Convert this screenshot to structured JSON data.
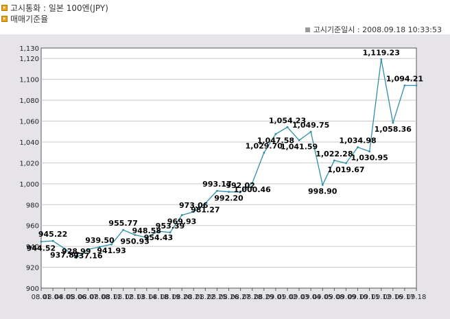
{
  "header": {
    "currency_label": "고시통화 : 일본 100엔(JPY)",
    "subtitle": "매매기준율",
    "notice_time": "고시기준일시 : 2008.09.18 10:33:53"
  },
  "colors": {
    "line": "#2a8fa6",
    "bullet": "#e8a317",
    "panel": "#e6e4e8"
  },
  "chart_data": {
    "type": "line",
    "title": "",
    "xlabel": "",
    "ylabel": "",
    "ylim": [
      900,
      1130
    ],
    "yticks": [
      900,
      920,
      940,
      960,
      980,
      1000,
      1020,
      1040,
      1060,
      1080,
      1100,
      1120,
      1130
    ],
    "ytick_labels": [
      "900",
      "920",
      "940",
      "960",
      "980",
      "1,000",
      "1,020",
      "1,040",
      "1,060",
      "1,080",
      "1,100",
      "1,120",
      "1,130"
    ],
    "grid": true,
    "x": [
      "08.01",
      "08.04",
      "08.05",
      "08.06",
      "08.07",
      "08.08",
      "08.11",
      "08.12",
      "08.13",
      "08.14",
      "08.18",
      "08.19",
      "08.20",
      "08.21",
      "08.22",
      "08.25",
      "08.26",
      "08.27",
      "08.28",
      "08.29",
      "09.01",
      "09.02",
      "09.03",
      "09.04",
      "09.05",
      "09.08",
      "09.09",
      "09.10",
      "09.11",
      "09.12",
      "09.16",
      "09.17",
      "09.18"
    ],
    "values": [
      944.52,
      945.22,
      937.87,
      928.99,
      937.16,
      939.5,
      941.93,
      955.77,
      950.93,
      948.58,
      954.43,
      953.39,
      969.93,
      973.06,
      981.27,
      993.17,
      992.2,
      992.02,
      1000.46,
      1029.7,
      1047.58,
      1054.23,
      1041.59,
      1049.75,
      998.9,
      1022.28,
      1019.67,
      1034.98,
      1030.95,
      1119.23,
      1058.36,
      1094.21,
      1094.21
    ],
    "data_labels": [
      "944.52",
      "945.22",
      "937.87",
      "928.99",
      "937.16",
      "939.50",
      "941.93",
      "955.77",
      "950.93",
      "948.58",
      "954.43",
      "953.39",
      "969.93",
      "973.06",
      "981.27",
      "993.17",
      "992.20",
      "992.02",
      "1,000.46",
      "1,029.70",
      "1,047.58",
      "1,054.23",
      "1,041.59",
      "1,049.75",
      "998.90",
      "1,022.28",
      "1,019.67",
      "1,034.98",
      "1,030.95",
      "1,119.23",
      "1,058.36",
      "1,094.21",
      ""
    ]
  }
}
